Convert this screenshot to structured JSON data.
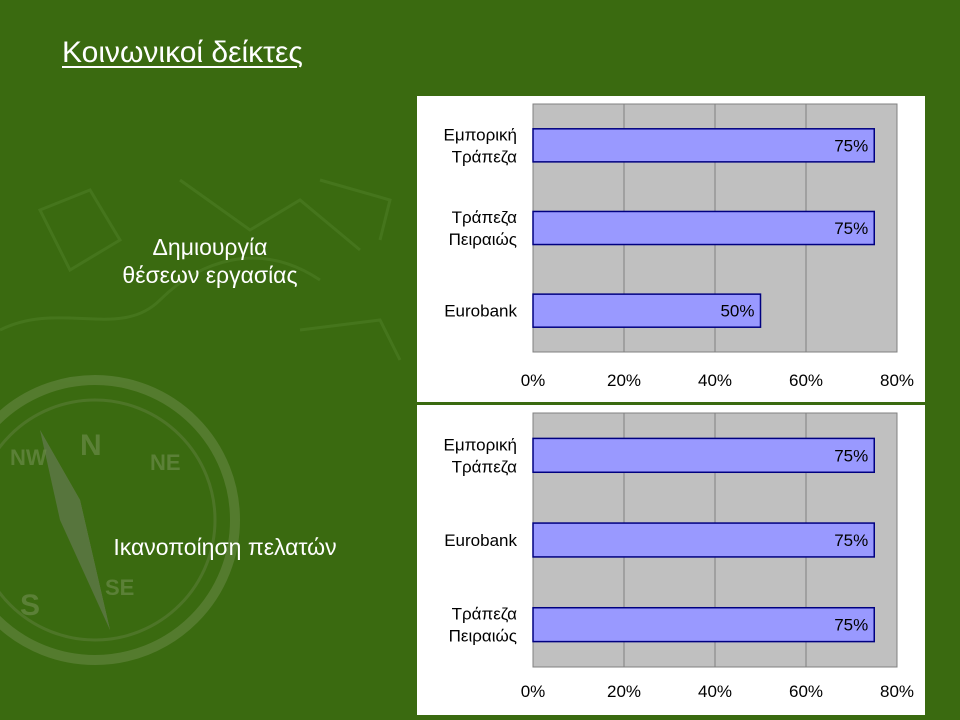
{
  "title": "Κοινωνικοί δείκτες",
  "sections": [
    {
      "label_lines": [
        "Δημιουργία",
        "θέσεων εργασίας"
      ]
    },
    {
      "label_lines": [
        "Ικανοποίηση πελατών"
      ]
    }
  ],
  "colors": {
    "background": "#3a6a10",
    "bar": "#9999ff",
    "plot_area": "#c0c0c0",
    "bar_border": "#000080"
  },
  "chart_data": [
    {
      "type": "bar",
      "orientation": "horizontal",
      "categories": [
        [
          "Εμπορική",
          "Τράπεζα"
        ],
        [
          "Τράπεζα",
          "Πειραιώς"
        ],
        [
          "Eurobank"
        ]
      ],
      "values": [
        0.75,
        0.75,
        0.5
      ],
      "data_labels": [
        "75%",
        "75%",
        "50%"
      ],
      "xlim": [
        0,
        0.8
      ],
      "xticks": [
        "0%",
        "20%",
        "40%",
        "60%",
        "80%"
      ],
      "grid": true
    },
    {
      "type": "bar",
      "orientation": "horizontal",
      "categories": [
        [
          "Εμπορική",
          "Τράπεζα"
        ],
        [
          "Eurobank"
        ],
        [
          "Τράπεζα",
          "Πειραιώς"
        ]
      ],
      "values": [
        0.75,
        0.75,
        0.75
      ],
      "data_labels": [
        "75%",
        "75%",
        "75%"
      ],
      "xlim": [
        0,
        0.8
      ],
      "xticks": [
        "0%",
        "20%",
        "40%",
        "60%",
        "80%"
      ],
      "grid": true
    }
  ]
}
